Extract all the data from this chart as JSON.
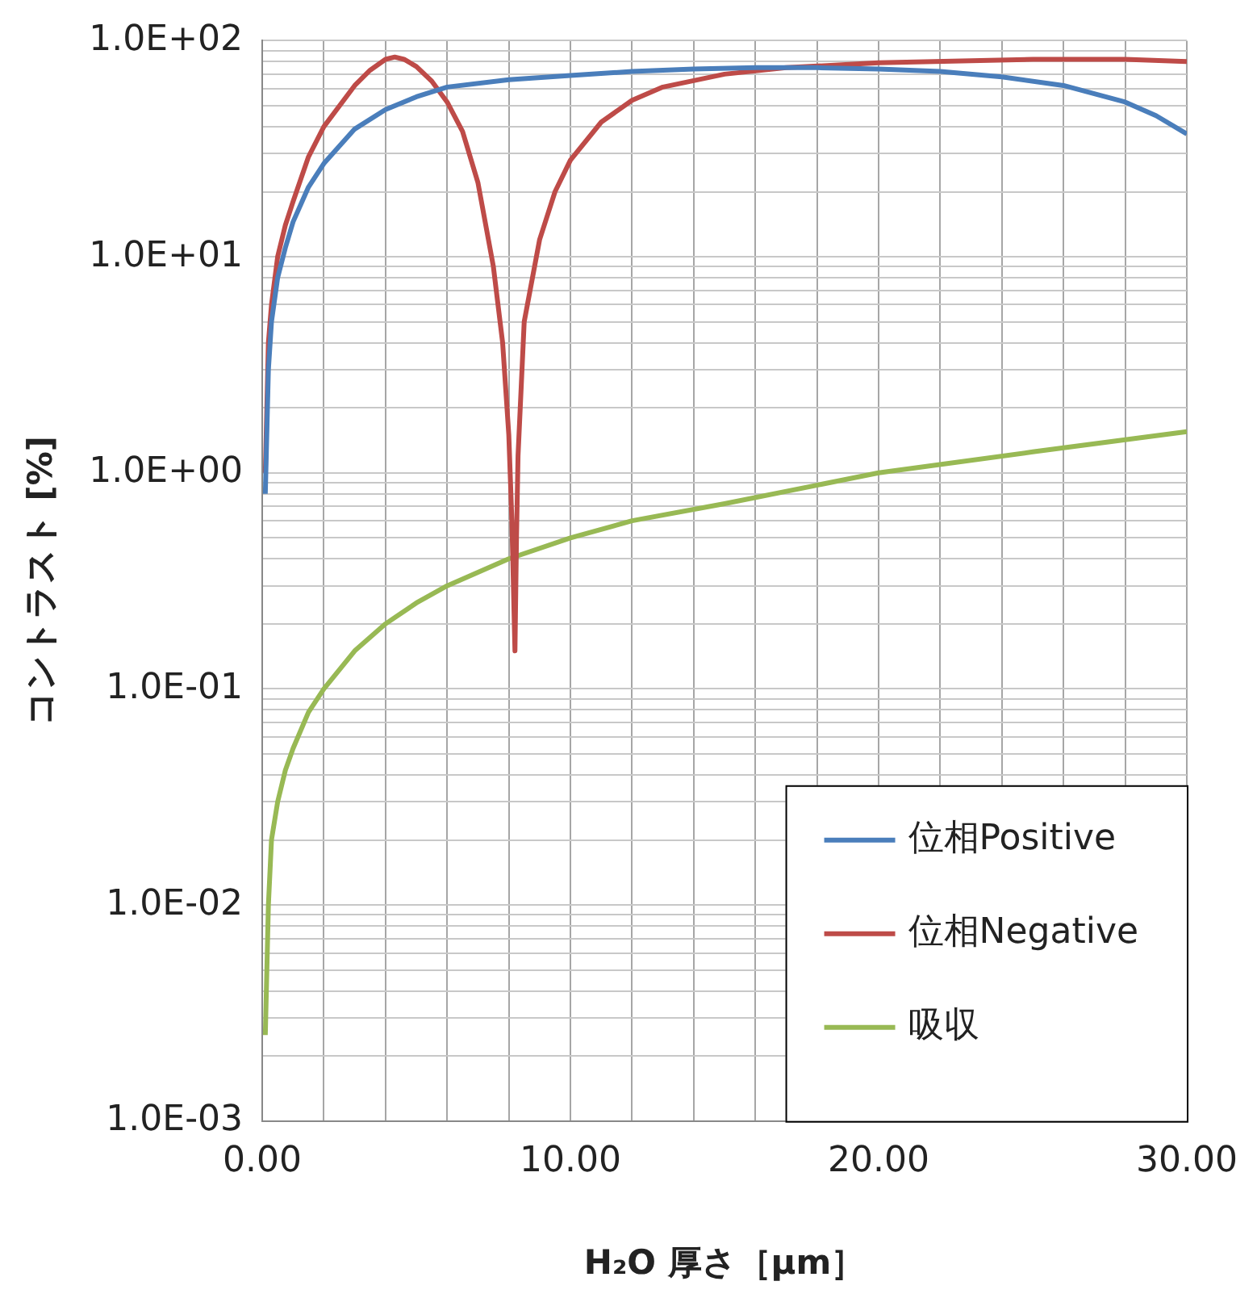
{
  "chart_data": {
    "type": "line",
    "xlabel": "H₂O 厚さ［μm］",
    "ylabel": "コントラスト [%]",
    "log": "y",
    "grid": true,
    "legend": "bottom right",
    "marker": "none",
    "line_style": "solid",
    "xlim": [
      0,
      30
    ],
    "ylim": [
      0.001,
      100
    ],
    "xticks": [
      {
        "value": 0,
        "label": "0.00"
      },
      {
        "value": 2,
        "label": null
      },
      {
        "value": 4,
        "label": null
      },
      {
        "value": 6,
        "label": null
      },
      {
        "value": 8,
        "label": null
      },
      {
        "value": 10,
        "label": "10.00"
      },
      {
        "value": 12,
        "label": null
      },
      {
        "value": 14,
        "label": null
      },
      {
        "value": 16,
        "label": null
      },
      {
        "value": 18,
        "label": null
      },
      {
        "value": 20,
        "label": "20.00"
      },
      {
        "value": 22,
        "label": null
      },
      {
        "value": 24,
        "label": null
      },
      {
        "value": 26,
        "label": null
      },
      {
        "value": 28,
        "label": null
      },
      {
        "value": 30,
        "label": "30.00"
      }
    ],
    "yticks": [
      {
        "value": 0.001,
        "label": "1.0E-03"
      },
      {
        "value": 0.002,
        "label": null
      },
      {
        "value": 0.003,
        "label": null
      },
      {
        "value": 0.004,
        "label": null
      },
      {
        "value": 0.005,
        "label": null
      },
      {
        "value": 0.006,
        "label": null
      },
      {
        "value": 0.007,
        "label": null
      },
      {
        "value": 0.008,
        "label": null
      },
      {
        "value": 0.009,
        "label": null
      },
      {
        "value": 0.01,
        "label": "1.0E-02"
      },
      {
        "value": 0.02,
        "label": null
      },
      {
        "value": 0.03,
        "label": null
      },
      {
        "value": 0.04,
        "label": null
      },
      {
        "value": 0.05,
        "label": null
      },
      {
        "value": 0.06,
        "label": null
      },
      {
        "value": 0.07,
        "label": null
      },
      {
        "value": 0.08,
        "label": null
      },
      {
        "value": 0.09,
        "label": null
      },
      {
        "value": 0.1,
        "label": "1.0E-01"
      },
      {
        "value": 0.2,
        "label": null
      },
      {
        "value": 0.3,
        "label": null
      },
      {
        "value": 0.4,
        "label": null
      },
      {
        "value": 0.5,
        "label": null
      },
      {
        "value": 0.6,
        "label": null
      },
      {
        "value": 0.7,
        "label": null
      },
      {
        "value": 0.8,
        "label": null
      },
      {
        "value": 0.9,
        "label": null
      },
      {
        "value": 1,
        "label": "1.0E+00"
      },
      {
        "value": 2,
        "label": null
      },
      {
        "value": 3,
        "label": null
      },
      {
        "value": 4,
        "label": null
      },
      {
        "value": 5,
        "label": null
      },
      {
        "value": 6,
        "label": null
      },
      {
        "value": 7,
        "label": null
      },
      {
        "value": 8,
        "label": null
      },
      {
        "value": 9,
        "label": null
      },
      {
        "value": 10,
        "label": "1.0E+01"
      },
      {
        "value": 20,
        "label": null
      },
      {
        "value": 30,
        "label": null
      },
      {
        "value": 40,
        "label": null
      },
      {
        "value": 50,
        "label": null
      },
      {
        "value": 60,
        "label": null
      },
      {
        "value": 70,
        "label": null
      },
      {
        "value": 80,
        "label": null
      },
      {
        "value": 90,
        "label": null
      },
      {
        "value": 100,
        "label": "1.0E+02"
      }
    ],
    "series": [
      {
        "name": "位相Positive",
        "color": "#4a7ebb",
        "x": [
          0.1,
          0.2,
          0.3,
          0.5,
          0.75,
          1,
          1.5,
          2,
          3,
          4,
          5,
          6,
          8,
          10,
          12,
          14,
          16,
          18,
          20,
          22,
          24,
          26,
          28,
          29,
          30
        ],
        "values": [
          0.8,
          3,
          5,
          8,
          11,
          14.5,
          21,
          27,
          39,
          48,
          55,
          61,
          66,
          69,
          72,
          74,
          75,
          75,
          74,
          72,
          68,
          62,
          52,
          45,
          37
        ]
      },
      {
        "name": "位相Negative",
        "color": "#be4b48",
        "x": [
          0.1,
          0.2,
          0.3,
          0.5,
          0.75,
          1,
          1.5,
          2,
          3,
          3.5,
          4,
          4.3,
          4.6,
          5,
          5.5,
          6,
          6.5,
          7,
          7.5,
          7.8,
          8,
          8.1,
          8.2,
          8.25,
          8.3,
          8.5,
          9,
          9.5,
          10,
          11,
          12,
          13,
          15,
          17,
          20,
          25,
          28,
          30
        ],
        "values": [
          1,
          4,
          6,
          10,
          14,
          18,
          29,
          40,
          62,
          73,
          82,
          84,
          82,
          76,
          65,
          52,
          38,
          22,
          9,
          4,
          1.5,
          0.6,
          0.15,
          0.5,
          1.2,
          5,
          12,
          20,
          28,
          42,
          53,
          61,
          70,
          75,
          79,
          82,
          82,
          80
        ]
      },
      {
        "name": "吸収",
        "color": "#98b954",
        "x": [
          0.1,
          0.2,
          0.3,
          0.5,
          0.75,
          1,
          1.5,
          2,
          3,
          4,
          5,
          6,
          8,
          10,
          12,
          15,
          20,
          25,
          30
        ],
        "values": [
          0.0025,
          0.01,
          0.02,
          0.03,
          0.042,
          0.053,
          0.078,
          0.1,
          0.15,
          0.2,
          0.25,
          0.3,
          0.4,
          0.5,
          0.6,
          0.72,
          1.0,
          1.25,
          1.55
        ]
      }
    ]
  }
}
